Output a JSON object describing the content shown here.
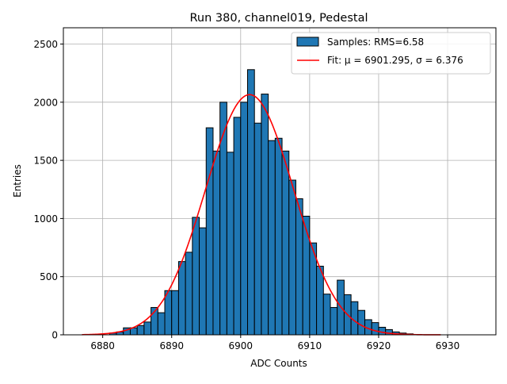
{
  "chart_data": {
    "type": "bar",
    "title": "Run 380, channel019, Pedestal",
    "xlabel": "ADC Counts",
    "ylabel": "Entries",
    "xlim": [
      6874.3,
      6937.0
    ],
    "ylim": [
      0,
      2640
    ],
    "xticks": [
      6880,
      6890,
      6900,
      6910,
      6920,
      6930
    ],
    "yticks": [
      0,
      500,
      1000,
      1500,
      2000,
      2500
    ],
    "grid": true,
    "legend_position": "top-right",
    "bin_width": 1,
    "histogram": {
      "name": "Samples: RMS=6.58",
      "color": "#1f77b4",
      "bins": [
        [
          6881,
          15
        ],
        [
          6882,
          25
        ],
        [
          6883,
          60
        ],
        [
          6884,
          60
        ],
        [
          6885,
          80
        ],
        [
          6886,
          110
        ],
        [
          6887,
          235
        ],
        [
          6888,
          190
        ],
        [
          6889,
          380
        ],
        [
          6890,
          380
        ],
        [
          6891,
          630
        ],
        [
          6892,
          710
        ],
        [
          6893,
          1010
        ],
        [
          6894,
          920
        ],
        [
          6895,
          1780
        ],
        [
          6896,
          1580
        ],
        [
          6897,
          2000
        ],
        [
          6898,
          1570
        ],
        [
          6899,
          1870
        ],
        [
          6900,
          2000
        ],
        [
          6901,
          2280
        ],
        [
          6902,
          1820
        ],
        [
          6903,
          2070
        ],
        [
          6904,
          1670
        ],
        [
          6905,
          1690
        ],
        [
          6906,
          1580
        ],
        [
          6907,
          1330
        ],
        [
          6908,
          1170
        ],
        [
          6909,
          1020
        ],
        [
          6910,
          790
        ],
        [
          6911,
          590
        ],
        [
          6912,
          350
        ],
        [
          6913,
          235
        ],
        [
          6914,
          470
        ],
        [
          6915,
          345
        ],
        [
          6916,
          285
        ],
        [
          6917,
          210
        ],
        [
          6918,
          130
        ],
        [
          6919,
          105
        ],
        [
          6920,
          65
        ],
        [
          6921,
          45
        ],
        [
          6922,
          25
        ],
        [
          6923,
          15
        ],
        [
          6924,
          8
        ]
      ]
    },
    "fit": {
      "name": "Fit: μ = 6901.295, σ = 6.376",
      "color": "#ff0000",
      "mu": 6901.295,
      "sigma": 6.376,
      "amplitude": 2065,
      "x_range": [
        6877,
        6929
      ]
    }
  }
}
